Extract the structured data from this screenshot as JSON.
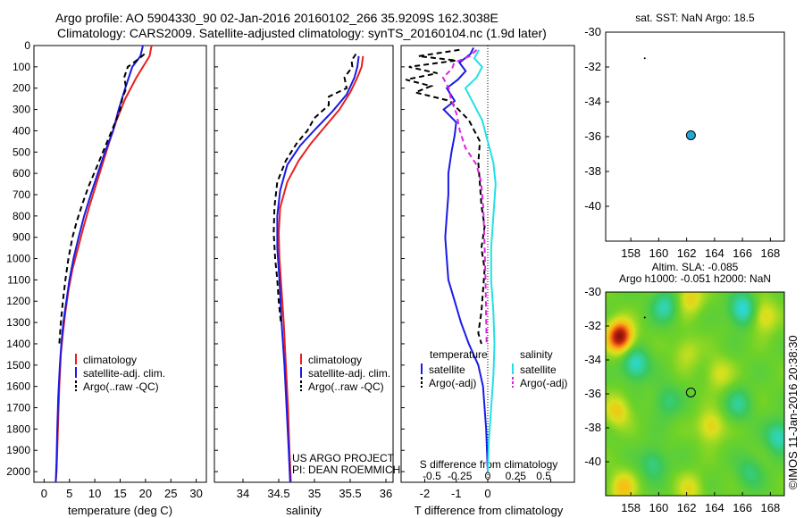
{
  "header": {
    "line1": "Argo profile: AO 5904330_90 02-Jan-2016 20160102_266 35.9209S 162.3038E",
    "line2": "Climatology: CARS2009. Satellite-adjusted climatology: synTS_20160104.nc (1.9d later)"
  },
  "watermark": "©IMOS 11-Jan-2016 20:38:30",
  "chart_data": [
    {
      "type": "line",
      "id": "temperature",
      "xlabel": "temperature (deg C)",
      "ylabel": "",
      "xlim": [
        -2,
        32
      ],
      "ylim": [
        2050,
        0
      ],
      "xticks": [
        0,
        5,
        10,
        15,
        20,
        25,
        30
      ],
      "yticks": [
        0,
        100,
        200,
        300,
        400,
        500,
        600,
        700,
        800,
        900,
        1000,
        1100,
        1200,
        1300,
        1400,
        1500,
        1600,
        1700,
        1800,
        1900,
        2000
      ],
      "legend": [
        "climatology",
        "satellite-adj. clim.",
        "Argo(..raw -QC)"
      ],
      "series": [
        {
          "color": "#e8201c",
          "style": "solid",
          "x": [
            21.2,
            20.8,
            19.5,
            18.2,
            16.0,
            14.3,
            12.9,
            11.6,
            10.3,
            9.0,
            7.8,
            6.7,
            5.6,
            4.8,
            4.2,
            3.7,
            3.3,
            3.0,
            2.8,
            2.6,
            2.45,
            2.3
          ],
          "depth": [
            0,
            50,
            100,
            150,
            250,
            350,
            450,
            550,
            650,
            750,
            850,
            950,
            1050,
            1150,
            1250,
            1350,
            1450,
            1600,
            1750,
            1900,
            2000,
            2050
          ]
        },
        {
          "color": "#1a1ae6",
          "style": "solid",
          "x": [
            19.5,
            19.0,
            17.4,
            16.0,
            14.7,
            13.6,
            12.0,
            10.6,
            9.2,
            7.9,
            6.8,
            5.8,
            5.0,
            4.4,
            3.8,
            3.4,
            3.1,
            2.8,
            2.6,
            2.45,
            2.3
          ],
          "depth": [
            0,
            50,
            100,
            200,
            300,
            400,
            500,
            600,
            700,
            800,
            900,
            1000,
            1100,
            1200,
            1300,
            1400,
            1500,
            1650,
            1800,
            1950,
            2050
          ]
        },
        {
          "color": "#000000",
          "style": "dashed",
          "x": [
            19.8,
            18.8,
            16.5,
            15.8,
            16.2,
            15.4,
            15.0,
            14.2,
            13.0,
            11.6,
            10.2,
            8.8,
            7.6,
            6.5,
            5.6,
            4.8,
            4.2,
            3.7,
            3.3,
            3.0
          ],
          "depth": [
            40,
            60,
            100,
            150,
            200,
            250,
            300,
            350,
            420,
            500,
            580,
            660,
            740,
            820,
            900,
            1000,
            1100,
            1200,
            1300,
            1400
          ]
        }
      ]
    },
    {
      "type": "line",
      "id": "salinity",
      "xlabel": "salinity",
      "xlim": [
        33.6,
        36.1
      ],
      "ylim": [
        2050,
        0
      ],
      "xticks": [
        34,
        34.5,
        35,
        35.5,
        36
      ],
      "legend": [
        "climatology",
        "satellite-adj. clim.",
        "Argo(..raw -QC)"
      ],
      "annotation": [
        "US ARGO PROJECT",
        "PI: DEAN ROEMMICH"
      ],
      "series": [
        {
          "color": "#e8201c",
          "style": "solid",
          "x": [
            35.68,
            35.66,
            35.6,
            35.5,
            35.35,
            35.15,
            34.95,
            34.78,
            34.62,
            34.52,
            34.5,
            34.51,
            34.54,
            34.57,
            34.6,
            34.63,
            34.65,
            34.67
          ],
          "depth": [
            50,
            100,
            150,
            220,
            300,
            380,
            460,
            540,
            640,
            760,
            880,
            1000,
            1150,
            1300,
            1500,
            1700,
            1900,
            2050
          ]
        },
        {
          "color": "#1a1ae6",
          "style": "solid",
          "x": [
            35.62,
            35.6,
            35.56,
            35.45,
            35.25,
            35.02,
            34.8,
            34.62,
            34.52,
            34.48,
            34.48,
            34.51,
            34.54,
            34.58,
            34.61,
            34.64,
            34.66
          ],
          "depth": [
            50,
            100,
            150,
            230,
            310,
            390,
            470,
            560,
            680,
            800,
            950,
            1100,
            1300,
            1500,
            1700,
            1900,
            2050
          ]
        },
        {
          "color": "#000000",
          "style": "dashed",
          "x": [
            35.58,
            35.52,
            35.53,
            35.42,
            35.45,
            35.2,
            35.2,
            35.0,
            34.9,
            34.75,
            34.6,
            34.48,
            34.44,
            34.43,
            34.45,
            34.48,
            34.5,
            34.53
          ],
          "depth": [
            40,
            70,
            100,
            150,
            200,
            240,
            280,
            340,
            400,
            460,
            540,
            640,
            760,
            880,
            1000,
            1100,
            1200,
            1300
          ]
        }
      ]
    },
    {
      "type": "line",
      "id": "difference",
      "xlabel": "T difference from climatology",
      "xlabel_top": "S difference from climatology",
      "xlim": [
        -2.75,
        2.75
      ],
      "ylim": [
        2050,
        0
      ],
      "xticks": [
        -2,
        -1,
        0,
        1,
        2
      ],
      "xtick_labels": [
        "-2",
        "-1",
        "0",
        "",
        ""
      ],
      "sticks": [
        -0.5,
        -0.25,
        0,
        0.25,
        0.5
      ],
      "stick_labels": [
        "-0.5",
        "-0.25",
        "0",
        "0.25",
        "0.5"
      ],
      "legend_groups": [
        {
          "heading": "temperature",
          "items": [
            "satellite",
            "Argo(-adj)"
          ]
        },
        {
          "heading": "salinity",
          "items": [
            "satellite",
            "Argo(-adj)"
          ]
        }
      ],
      "series": [
        {
          "color": "#1a1ae6",
          "style": "solid",
          "quantity": "temperature",
          "x": [
            -0.45,
            -0.55,
            -0.9,
            -0.7,
            -0.95,
            -1.3,
            -1.05,
            -1.4,
            -1.0,
            -1.05,
            -1.15,
            -1.25,
            -1.25,
            -1.3,
            -1.35,
            -1.3,
            -1.25,
            -1.05,
            -0.85,
            -0.6,
            -0.3,
            -0.15,
            -0.05,
            0.0
          ],
          "depth": [
            10,
            40,
            80,
            120,
            160,
            200,
            260,
            300,
            360,
            420,
            500,
            600,
            700,
            800,
            900,
            1000,
            1100,
            1200,
            1300,
            1400,
            1500,
            1600,
            1800,
            2000
          ]
        },
        {
          "color": "#000000",
          "style": "dashed",
          "quantity": "temperature",
          "x": [
            -0.9,
            -2.2,
            -1.0,
            -2.5,
            -1.6,
            -2.6,
            -1.8,
            -2.3,
            -1.2,
            -0.6,
            -0.25,
            -0.3,
            -0.25,
            -0.2,
            -0.1,
            -0.2,
            -0.1,
            -0.15,
            -0.2,
            -0.3,
            -0.2
          ],
          "depth": [
            20,
            50,
            70,
            100,
            130,
            160,
            190,
            220,
            260,
            350,
            450,
            550,
            650,
            750,
            850,
            950,
            1050,
            1150,
            1250,
            1350,
            1400
          ]
        },
        {
          "color": "#22e0e6",
          "style": "solid",
          "quantity": "salinity",
          "x": [
            -0.08,
            -0.12,
            -0.05,
            -0.1,
            -0.2,
            -0.15,
            -0.05,
            0.0,
            0.05,
            0.07,
            0.05,
            0.03,
            0.03,
            0.05,
            0.06,
            0.05,
            0.03,
            0.01,
            0.0
          ],
          "depth": [
            20,
            60,
            100,
            150,
            200,
            250,
            350,
            450,
            550,
            650,
            800,
            950,
            1100,
            1250,
            1400,
            1550,
            1700,
            1850,
            2000
          ]
        },
        {
          "color": "#e020e0",
          "style": "dashed",
          "quantity": "salinity",
          "x": [
            -0.1,
            -0.16,
            -0.3,
            -0.32,
            -0.4,
            -0.35,
            -0.33,
            -0.28,
            -0.25,
            -0.2,
            -0.1,
            -0.06,
            -0.04,
            -0.03,
            -0.02,
            -0.01
          ],
          "depth": [
            20,
            50,
            80,
            110,
            150,
            200,
            250,
            320,
            400,
            480,
            560,
            640,
            760,
            900,
            1100,
            1400
          ]
        }
      ]
    },
    {
      "type": "scatter",
      "id": "sst-map",
      "title": "sat. SST: NaN Argo: 18.5",
      "xlim": [
        156.2,
        169.0
      ],
      "ylim": [
        -42,
        -30
      ],
      "xticks": [
        158,
        160,
        162,
        164,
        166,
        168
      ],
      "yticks": [
        -30,
        -32,
        -34,
        -36,
        -38,
        -40
      ],
      "points": [
        {
          "lon": 162.3038,
          "lat": -35.9209,
          "fill": "#22a8d8",
          "label": "profile"
        },
        {
          "lon": 159.0,
          "lat": -31.5,
          "fill": "#000000",
          "label": "dot"
        }
      ]
    },
    {
      "type": "heatmap",
      "id": "sla-map",
      "title": "Altim. SLA: -0.085",
      "subtitle": "Argo h1000: -0.051 h2000: NaN",
      "xlim": [
        156.2,
        169.0
      ],
      "ylim": [
        -42,
        -30
      ],
      "xticks": [
        158,
        160,
        162,
        164,
        166,
        168
      ],
      "yticks": [
        -30,
        -32,
        -34,
        -36,
        -38,
        -40
      ],
      "profile": {
        "lon": 162.3038,
        "lat": -35.9209
      },
      "blobs": [
        {
          "lon": 157.2,
          "lat": -32.6,
          "v": 1.0
        },
        {
          "lon": 162.2,
          "lat": -30.3,
          "v": 0.4
        },
        {
          "lon": 167.5,
          "lat": -31.4,
          "v": 0.4
        },
        {
          "lon": 163.7,
          "lat": -37.9,
          "v": 0.4
        },
        {
          "lon": 164.3,
          "lat": -34.8,
          "v": 0.3
        },
        {
          "lon": 157.0,
          "lat": -37.0,
          "v": 0.4
        },
        {
          "lon": 157.4,
          "lat": -41.5,
          "v": 0.45
        },
        {
          "lon": 162.0,
          "lat": -33.5,
          "v": 0.25
        },
        {
          "lon": 162.2,
          "lat": -41.6,
          "v": 0.3
        },
        {
          "lon": 158.3,
          "lat": -34.2,
          "v": -0.55
        },
        {
          "lon": 160.4,
          "lat": -30.8,
          "v": -0.45
        },
        {
          "lon": 166.0,
          "lat": -31.0,
          "v": -0.6
        },
        {
          "lon": 168.6,
          "lat": -38.5,
          "v": -0.5
        },
        {
          "lon": 160.6,
          "lat": -36.4,
          "v": -0.3
        },
        {
          "lon": 165.7,
          "lat": -36.6,
          "v": -0.35
        },
        {
          "lon": 159.6,
          "lat": -40.1,
          "v": -0.35
        },
        {
          "lon": 166.5,
          "lat": -40.6,
          "v": -0.3
        }
      ]
    }
  ]
}
